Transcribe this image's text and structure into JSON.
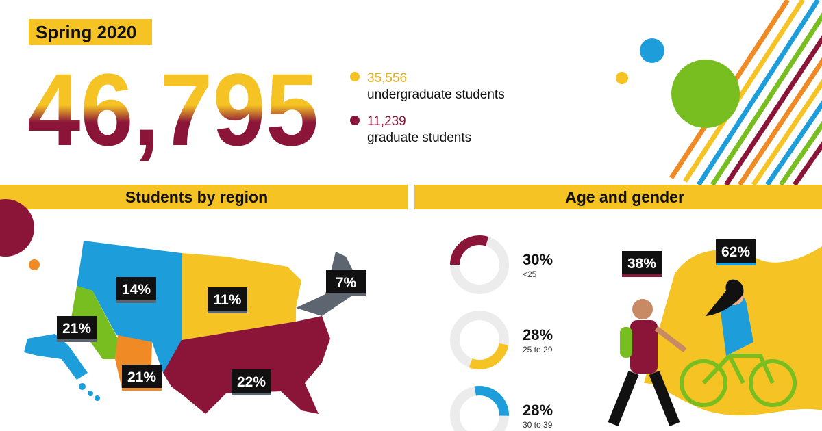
{
  "header": {
    "term": "Spring 2020",
    "total": "46,795",
    "undergrad": {
      "count": "35,556",
      "label": "undergraduate students"
    },
    "grad": {
      "count": "11,239",
      "label": "graduate students"
    }
  },
  "region": {
    "title": "Students by region",
    "regions": [
      {
        "label": "14%"
      },
      {
        "label": "11%"
      },
      {
        "label": "7%"
      },
      {
        "label": "21%"
      },
      {
        "label": "21%"
      },
      {
        "label": "22%"
      }
    ]
  },
  "age_gender": {
    "title": "Age and gender",
    "ages": [
      {
        "value": 30,
        "label": "30%",
        "range": "<25",
        "color": "#8a1538"
      },
      {
        "value": 28,
        "label": "28%",
        "range": "25 to 29",
        "color": "#f6c324"
      },
      {
        "value": 28,
        "label": "28%",
        "range": "30 to 39",
        "color": "#1e9ddb"
      }
    ],
    "gender": [
      {
        "label": "38%"
      },
      {
        "label": "62%"
      }
    ]
  }
}
